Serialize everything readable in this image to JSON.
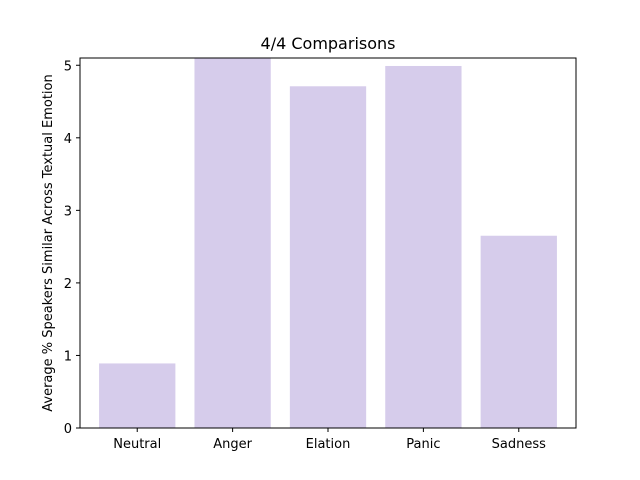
{
  "chart_data": {
    "type": "bar",
    "title": "4/4 Comparisons",
    "xlabel": "",
    "ylabel": "Average % Speakers Similar Across Textual Emotion",
    "categories": [
      "Neutral",
      "Anger",
      "Elation",
      "Panic",
      "Sadness"
    ],
    "values": [
      0.89,
      5.1,
      4.71,
      4.99,
      2.65
    ],
    "ylim": [
      0,
      5.1
    ],
    "yticks": [
      0,
      1,
      2,
      3,
      4,
      5
    ],
    "grid": false,
    "bar_color": "#d6cceb"
  }
}
